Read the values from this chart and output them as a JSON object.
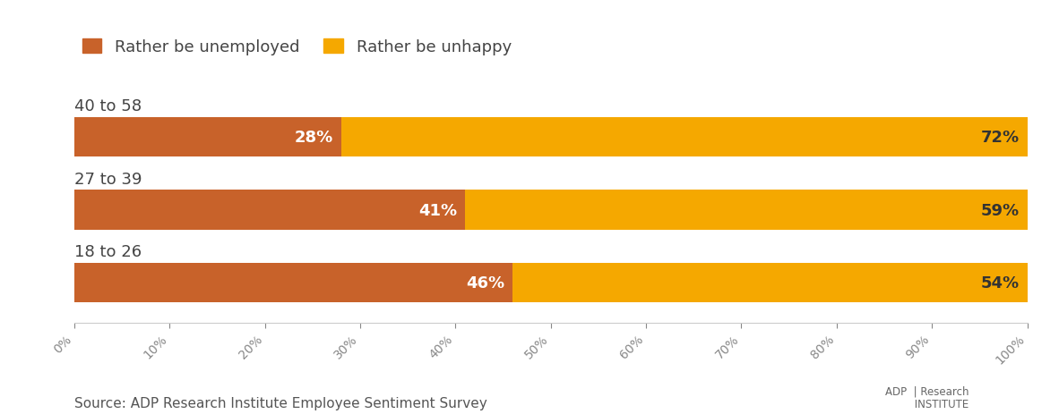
{
  "categories": [
    "40 to 58",
    "27 to 39",
    "18 to 26"
  ],
  "unemployed_vals": [
    28,
    41,
    46
  ],
  "unhappy_vals": [
    72,
    59,
    54
  ],
  "color_unemployed": "#C8622A",
  "color_unhappy": "#F5A800",
  "background_color": "#ffffff",
  "legend_unemployed": "Rather be unemployed",
  "legend_unhappy": "Rather be unhappy",
  "source_text": "Source: ADP Research Institute Employee Sentiment Survey",
  "label_fontsize": 13,
  "category_fontsize": 13,
  "legend_fontsize": 13,
  "source_fontsize": 11,
  "tick_fontsize": 10,
  "bar_height": 0.55
}
